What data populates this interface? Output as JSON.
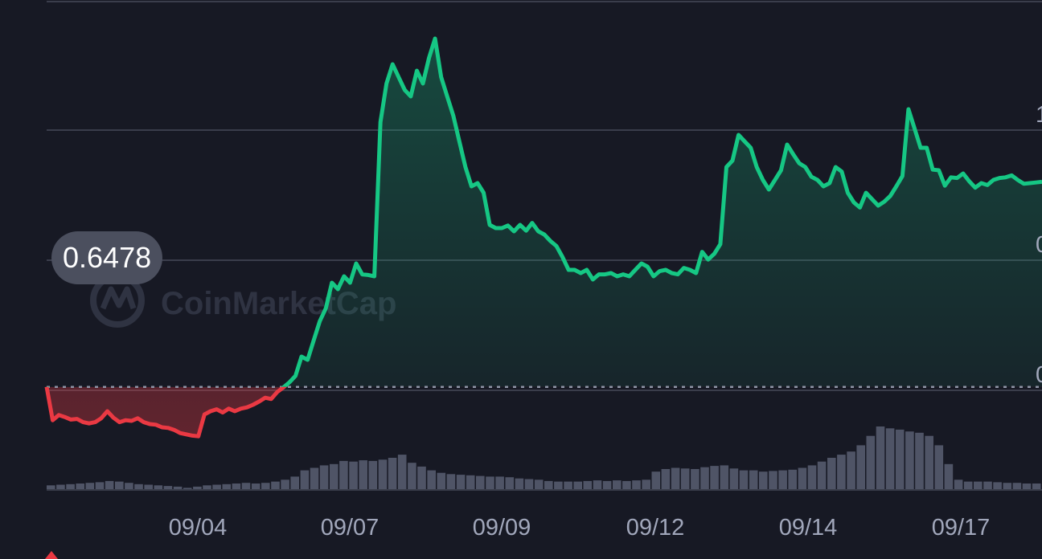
{
  "chart_data": {
    "type": "line",
    "x_tick_labels": [
      "09/04",
      "09/07",
      "09/09",
      "09/12",
      "09/14",
      "09/17"
    ],
    "y_tick_labels": [
      "1",
      "0",
      "0"
    ],
    "reference_value": "0.6478",
    "reference_level": 0.6478,
    "watermark": "CoinMarketCap",
    "ylim": [
      0.5,
      1.25
    ],
    "colors": {
      "above": "#16c784",
      "below": "#ea3943",
      "grid": "#3a3d4b",
      "volume": "#4f5466",
      "background": "#171924"
    },
    "grid": true,
    "series": [
      {
        "values": [
          0.648,
          0.596,
          0.604,
          0.601,
          0.597,
          0.598,
          0.593,
          0.591,
          0.593,
          0.599,
          0.61,
          0.6,
          0.593,
          0.596,
          0.595,
          0.599,
          0.593,
          0.59,
          0.589,
          0.585,
          0.584,
          0.581,
          0.576,
          0.574,
          0.572,
          0.571,
          0.605,
          0.61,
          0.613,
          0.608,
          0.614,
          0.61,
          0.614,
          0.616,
          0.62,
          0.625,
          0.631,
          0.629,
          0.64,
          0.647,
          0.655,
          0.665,
          0.695,
          0.69,
          0.72,
          0.75,
          0.77,
          0.81,
          0.8,
          0.82,
          0.81,
          0.84,
          0.823,
          0.822,
          0.82,
          1.06,
          1.12,
          1.15,
          1.13,
          1.11,
          1.1,
          1.14,
          1.12,
          1.16,
          1.19,
          1.13,
          1.1,
          1.07,
          1.03,
          0.99,
          0.96,
          0.965,
          0.95,
          0.9,
          0.895,
          0.895,
          0.899,
          0.89,
          0.9,
          0.891,
          0.903,
          0.89,
          0.885,
          0.875,
          0.867,
          0.85,
          0.83,
          0.83,
          0.825,
          0.83,
          0.815,
          0.823,
          0.823,
          0.825,
          0.82,
          0.823,
          0.82,
          0.83,
          0.84,
          0.835,
          0.82,
          0.828,
          0.83,
          0.825,
          0.823,
          0.833,
          0.83,
          0.825,
          0.858,
          0.846,
          0.855,
          0.87,
          0.99,
          1.0,
          1.04,
          1.03,
          1.02,
          0.99,
          0.97,
          0.955,
          0.97,
          0.985,
          1.025,
          1.01,
          0.996,
          0.99,
          0.975,
          0.97,
          0.96,
          0.965,
          0.99,
          0.983,
          0.95,
          0.935,
          0.927,
          0.95,
          0.94,
          0.93,
          0.936,
          0.945,
          0.96,
          0.976,
          1.08,
          1.05,
          1.02,
          1.02,
          0.986,
          0.985,
          0.961,
          0.974,
          0.973,
          0.98,
          0.968,
          0.958,
          0.965,
          0.962,
          0.97,
          0.973,
          0.974,
          0.977,
          0.97,
          0.964,
          0.965,
          0.966,
          0.967
        ]
      }
    ],
    "volume": [
      0.06,
      0.07,
      0.08,
      0.09,
      0.1,
      0.11,
      0.13,
      0.12,
      0.1,
      0.08,
      0.07,
      0.06,
      0.05,
      0.04,
      0.02,
      0.04,
      0.06,
      0.07,
      0.08,
      0.09,
      0.1,
      0.09,
      0.1,
      0.12,
      0.15,
      0.2,
      0.3,
      0.34,
      0.38,
      0.4,
      0.45,
      0.44,
      0.46,
      0.45,
      0.47,
      0.5,
      0.55,
      0.42,
      0.36,
      0.3,
      0.26,
      0.24,
      0.23,
      0.22,
      0.21,
      0.2,
      0.2,
      0.19,
      0.17,
      0.16,
      0.15,
      0.13,
      0.12,
      0.12,
      0.12,
      0.13,
      0.14,
      0.13,
      0.14,
      0.13,
      0.14,
      0.15,
      0.28,
      0.32,
      0.34,
      0.33,
      0.32,
      0.35,
      0.37,
      0.38,
      0.33,
      0.3,
      0.3,
      0.28,
      0.29,
      0.3,
      0.31,
      0.34,
      0.38,
      0.44,
      0.5,
      0.55,
      0.6,
      0.7,
      0.85,
      1.0,
      0.97,
      0.95,
      0.92,
      0.9,
      0.85,
      0.7,
      0.4,
      0.15,
      0.12,
      0.12,
      0.12,
      0.11,
      0.1,
      0.1,
      0.09,
      0.09
    ]
  }
}
